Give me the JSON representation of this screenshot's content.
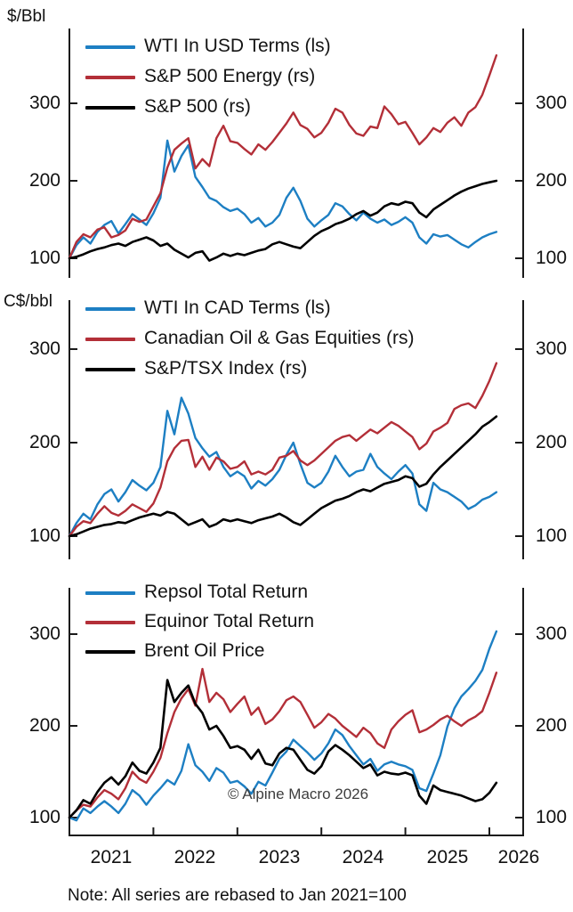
{
  "note": "Note: All series are rebased to Jan 2021=100",
  "copyright": "© Alpine Macro 2026",
  "axis": {
    "ytick_labels": [
      "100",
      "200",
      "300"
    ],
    "year_labels": [
      "2021",
      "2022",
      "2023",
      "2024",
      "2025",
      "2026"
    ]
  },
  "chart_data": [
    {
      "type": "line",
      "panel": "top",
      "unit": "$/Bbl",
      "x_start": "2021-01",
      "x_end": "2026-02",
      "x_interval": "monthly",
      "x_axis_years": [
        "2021",
        "2022",
        "2023",
        "2024",
        "2025",
        "2026"
      ],
      "yticks": [
        100,
        200,
        300
      ],
      "ylim_left": [
        75,
        395
      ],
      "grid": false,
      "legend_position": "top-left-inside",
      "series": [
        {
          "name": "WTI In USD Terms (ls)",
          "color": "#1d7fc3",
          "axis": "left",
          "values": [
            100,
            117,
            127,
            119,
            134,
            143,
            148,
            132,
            144,
            157,
            150,
            143,
            158,
            178,
            252,
            212,
            232,
            246,
            205,
            192,
            178,
            174,
            166,
            161,
            164,
            157,
            146,
            152,
            141,
            146,
            156,
            178,
            191,
            174,
            151,
            141,
            149,
            156,
            171,
            167,
            157,
            149,
            159,
            151,
            146,
            150,
            143,
            147,
            153,
            146,
            127,
            119,
            131,
            128,
            130,
            124,
            118,
            114,
            121,
            127,
            131,
            134
          ]
        },
        {
          "name": "S&P 500 Energy (rs)",
          "color": "#b32f38",
          "axis": "right",
          "values": [
            100,
            121,
            131,
            127,
            137,
            140,
            127,
            130,
            136,
            151,
            147,
            150,
            167,
            184,
            217,
            240,
            248,
            255,
            216,
            228,
            219,
            255,
            271,
            251,
            249,
            241,
            234,
            247,
            240,
            250,
            262,
            274,
            288,
            272,
            267,
            256,
            262,
            275,
            293,
            288,
            272,
            261,
            258,
            270,
            268,
            296,
            286,
            273,
            276,
            262,
            247,
            256,
            268,
            263,
            275,
            282,
            271,
            288,
            295,
            311,
            336,
            362
          ]
        },
        {
          "name": "S&P 500 (rs)",
          "color": "#000000",
          "axis": "right",
          "values": [
            100,
            102,
            105,
            109,
            112,
            114,
            117,
            119,
            116,
            121,
            124,
            127,
            123,
            116,
            119,
            111,
            106,
            101,
            107,
            109,
            97,
            101,
            106,
            103,
            106,
            104,
            107,
            110,
            112,
            118,
            121,
            118,
            115,
            113,
            121,
            129,
            135,
            139,
            144,
            147,
            151,
            157,
            161,
            155,
            159,
            167,
            171,
            169,
            173,
            171,
            159,
            153,
            163,
            169,
            175,
            181,
            186,
            190,
            193,
            196,
            198,
            200
          ]
        }
      ]
    },
    {
      "type": "line",
      "panel": "middle",
      "unit": "C$/bbl",
      "x_start": "2021-01",
      "x_end": "2026-02",
      "x_interval": "monthly",
      "yticks": [
        100,
        200,
        300
      ],
      "ylim_left": [
        75,
        350
      ],
      "grid": false,
      "legend_position": "top-left-inside",
      "series": [
        {
          "name": "WTI In CAD Terms (ls)",
          "color": "#1d7fc3",
          "axis": "left",
          "values": [
            100,
            114,
            124,
            118,
            134,
            145,
            150,
            137,
            147,
            160,
            154,
            149,
            157,
            174,
            234,
            209,
            248,
            231,
            205,
            194,
            185,
            190,
            174,
            164,
            169,
            164,
            151,
            159,
            154,
            161,
            171,
            187,
            200,
            177,
            157,
            152,
            157,
            169,
            186,
            174,
            164,
            169,
            171,
            188,
            174,
            167,
            161,
            169,
            176,
            167,
            134,
            127,
            157,
            150,
            147,
            142,
            137,
            129,
            133,
            139,
            142,
            147
          ]
        },
        {
          "name": "Canadian Oil & Gas Equities (rs)",
          "color": "#b32f38",
          "axis": "right",
          "values": [
            100,
            110,
            116,
            114,
            124,
            132,
            125,
            122,
            127,
            134,
            130,
            126,
            135,
            152,
            180,
            194,
            202,
            203,
            174,
            185,
            171,
            184,
            180,
            172,
            174,
            180,
            166,
            169,
            166,
            171,
            184,
            186,
            191,
            181,
            176,
            181,
            188,
            195,
            202,
            206,
            208,
            202,
            208,
            214,
            210,
            216,
            222,
            218,
            212,
            206,
            193,
            199,
            212,
            216,
            221,
            236,
            240,
            242,
            237,
            250,
            266,
            285
          ]
        },
        {
          "name": "S&P/TSX Index (rs)",
          "color": "#000000",
          "axis": "right",
          "values": [
            100,
            102,
            105,
            108,
            110,
            112,
            113,
            115,
            114,
            117,
            120,
            122,
            124,
            122,
            126,
            124,
            118,
            112,
            115,
            118,
            110,
            113,
            118,
            116,
            118,
            116,
            114,
            117,
            119,
            121,
            124,
            120,
            115,
            112,
            118,
            124,
            130,
            134,
            138,
            140,
            143,
            147,
            150,
            148,
            152,
            156,
            158,
            160,
            164,
            162,
            153,
            156,
            166,
            174,
            181,
            188,
            195,
            202,
            209,
            217,
            222,
            228
          ]
        }
      ]
    },
    {
      "type": "line",
      "panel": "bottom",
      "unit": "",
      "x_start": "2021-01",
      "x_end": "2026-02",
      "x_interval": "monthly",
      "yticks": [
        100,
        200,
        300
      ],
      "ylim_left": [
        81,
        350
      ],
      "grid": false,
      "legend_position": "top-left-inside",
      "series": [
        {
          "name": "Repsol Total Return",
          "color": "#1d7fc3",
          "axis": "left",
          "values": [
            100,
            97,
            110,
            105,
            112,
            118,
            112,
            105,
            115,
            130,
            124,
            114,
            124,
            132,
            141,
            136,
            151,
            180,
            157,
            150,
            140,
            154,
            149,
            138,
            140,
            134,
            126,
            139,
            135,
            149,
            164,
            172,
            185,
            178,
            171,
            163,
            170,
            181,
            196,
            190,
            178,
            168,
            158,
            164,
            151,
            158,
            161,
            158,
            156,
            152,
            132,
            129,
            148,
            168,
            199,
            219,
            232,
            240,
            249,
            261,
            284,
            303
          ]
        },
        {
          "name": "Equinor Total Return",
          "color": "#b32f38",
          "axis": "left",
          "values": [
            100,
            108,
            114,
            112,
            122,
            130,
            126,
            120,
            132,
            150,
            142,
            138,
            150,
            165,
            192,
            215,
            230,
            240,
            222,
            262,
            226,
            236,
            229,
            215,
            224,
            232,
            212,
            220,
            202,
            207,
            216,
            228,
            232,
            226,
            212,
            198,
            204,
            213,
            208,
            200,
            194,
            188,
            198,
            192,
            181,
            176,
            196,
            205,
            212,
            217,
            193,
            196,
            201,
            207,
            211,
            205,
            200,
            206,
            210,
            216,
            236,
            258
          ]
        },
        {
          "name": "Brent Oil Price",
          "color": "#000000",
          "axis": "left",
          "values": [
            100,
            108,
            119,
            115,
            128,
            138,
            144,
            136,
            145,
            160,
            151,
            148,
            160,
            176,
            250,
            226,
            236,
            244,
            224,
            214,
            196,
            200,
            189,
            176,
            178,
            174,
            164,
            174,
            159,
            157,
            170,
            176,
            174,
            163,
            152,
            148,
            156,
            172,
            179,
            174,
            168,
            161,
            154,
            158,
            146,
            150,
            148,
            147,
            149,
            146,
            124,
            115,
            135,
            130,
            128,
            126,
            124,
            121,
            118,
            120,
            127,
            138
          ]
        }
      ]
    }
  ]
}
